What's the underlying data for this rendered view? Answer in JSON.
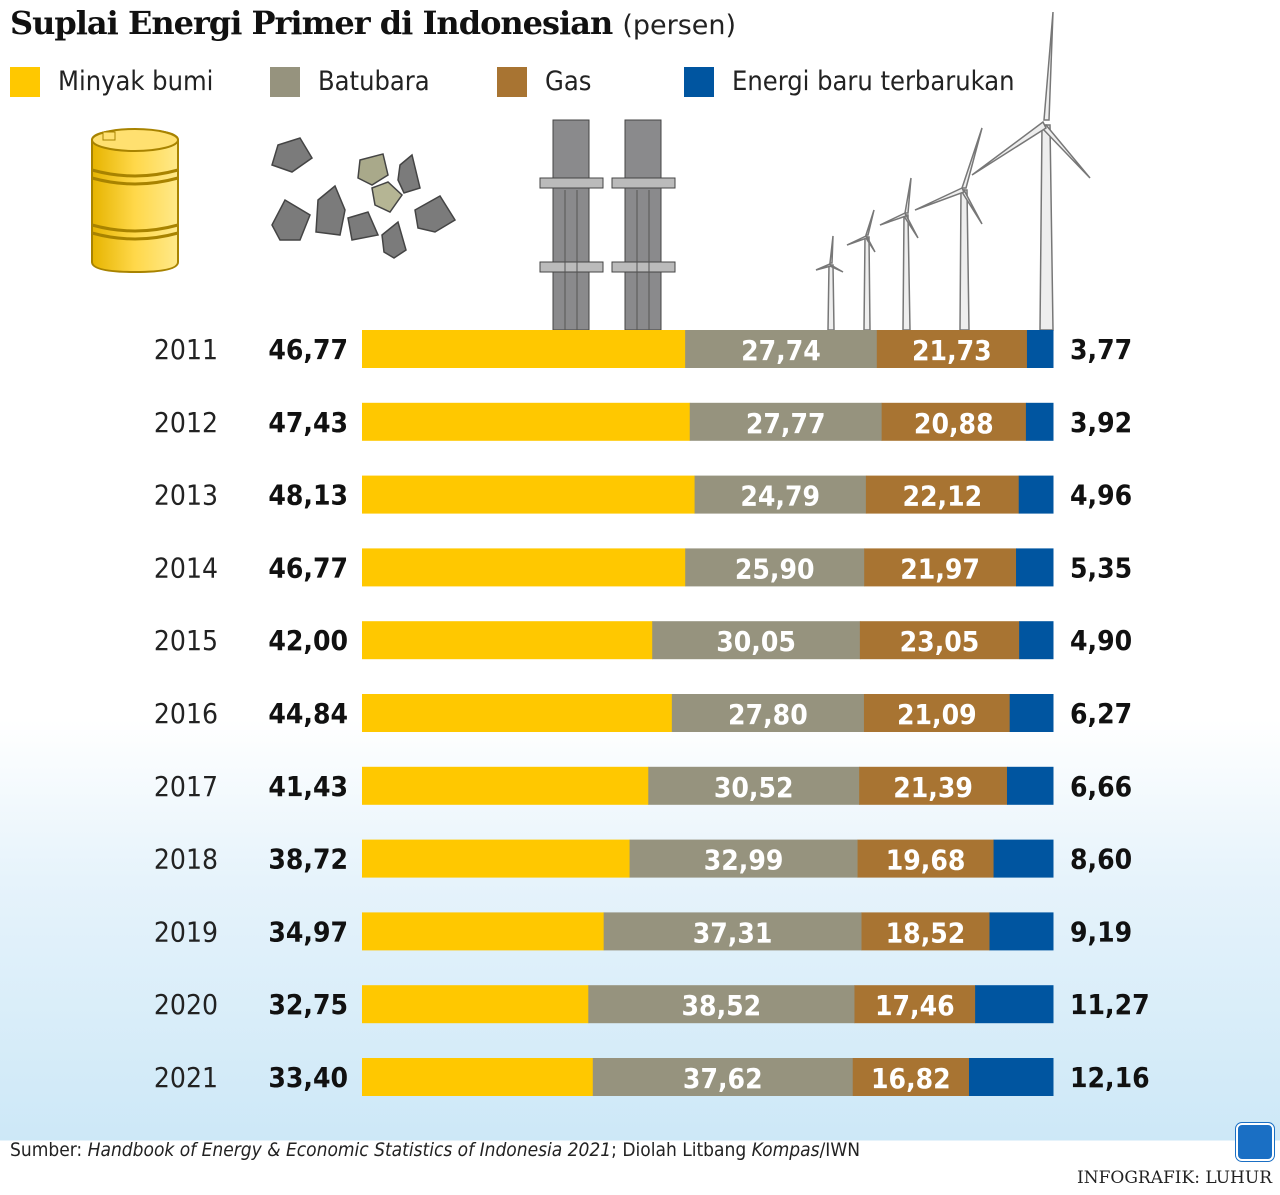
{
  "title": "Suplai Energi Primer di Indonesian",
  "unit": "(persen)",
  "source": {
    "prefix": "Sumber: ",
    "italic": "Handbook of Energy & Economic Statistics of Indonesia 2021",
    "middle": "; Diolah Litbang ",
    "italic2": "Kompas",
    "suffix": "/IWN"
  },
  "credit": "INFOGRAFIK: LUHUR",
  "logo": "K",
  "chart_data": {
    "type": "bar",
    "orientation": "horizontal-stacked",
    "categories": [
      "2011",
      "2012",
      "2013",
      "2014",
      "2015",
      "2016",
      "2017",
      "2018",
      "2019",
      "2020",
      "2021"
    ],
    "series": [
      {
        "name": "Minyak bumi",
        "color": "#FFC800",
        "values": [
          46.77,
          47.43,
          48.13,
          46.77,
          42.0,
          44.84,
          41.43,
          38.72,
          34.97,
          32.75,
          33.4
        ],
        "labels": [
          "46,77",
          "47,43",
          "48,13",
          "46,77",
          "42,00",
          "44,84",
          "41,43",
          "38,72",
          "34,97",
          "32,75",
          "33,40"
        ]
      },
      {
        "name": "Batubara",
        "color": "#96937E",
        "values": [
          27.74,
          27.77,
          24.79,
          25.9,
          30.05,
          27.8,
          30.52,
          32.99,
          37.31,
          38.52,
          37.62
        ],
        "labels": [
          "27,74",
          "27,77",
          "24,79",
          "25,90",
          "30,05",
          "27,80",
          "30,52",
          "32,99",
          "37,31",
          "38,52",
          "37,62"
        ]
      },
      {
        "name": "Gas",
        "color": "#A87432",
        "values": [
          21.73,
          20.88,
          22.12,
          21.97,
          23.05,
          21.09,
          21.39,
          19.68,
          18.52,
          17.46,
          16.82
        ],
        "labels": [
          "21,73",
          "20,88",
          "22,12",
          "21,97",
          "23,05",
          "21,09",
          "21,39",
          "19,68",
          "18,52",
          "17,46",
          "16,82"
        ]
      },
      {
        "name": "Energi baru terbarukan",
        "color": "#0055A0",
        "values": [
          3.77,
          3.92,
          4.96,
          5.35,
          4.9,
          6.27,
          6.66,
          8.6,
          9.19,
          11.27,
          12.16
        ],
        "labels": [
          "3,77",
          "3,92",
          "4,96",
          "5,35",
          "4,90",
          "6,27",
          "6,66",
          "8,60",
          "9,19",
          "11,27",
          "12,16"
        ]
      }
    ],
    "legend": "top",
    "grid": false
  }
}
